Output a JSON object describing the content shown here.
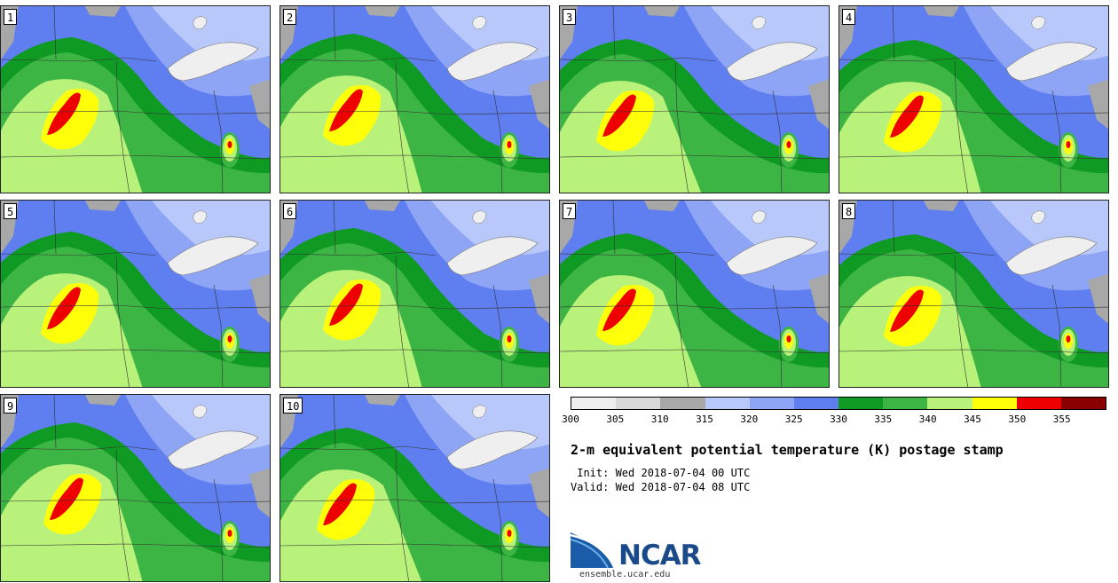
{
  "stamps": [
    {
      "label": "1",
      "variant": 0
    },
    {
      "label": "2",
      "variant": 1
    },
    {
      "label": "3",
      "variant": 2
    },
    {
      "label": "4",
      "variant": 3
    },
    {
      "label": "5",
      "variant": 0
    },
    {
      "label": "6",
      "variant": 1
    },
    {
      "label": "7",
      "variant": 2
    },
    {
      "label": "8",
      "variant": 3
    },
    {
      "label": "9",
      "variant": 1
    },
    {
      "label": "10",
      "variant": 2
    }
  ],
  "colorbar": {
    "colors": [
      "#efefef",
      "#d8d8d8",
      "#a8a8a8",
      "#b9c8fa",
      "#8ea5f5",
      "#5f7ef0",
      "#0f9a24",
      "#3db545",
      "#b8f27a",
      "#ffff0a",
      "#ee0000",
      "#8a0000"
    ],
    "ticks": [
      "300",
      "305",
      "310",
      "315",
      "320",
      "325",
      "330",
      "335",
      "340",
      "345",
      "350",
      "355"
    ]
  },
  "title": "2-m equivalent potential temperature (K) postage stamp",
  "init": " Init: Wed 2018-07-04 00 UTC",
  "valid": "Valid: Wed 2018-07-04 08 UTC",
  "logo": {
    "name": "NCAR",
    "url": "ensemble.ucar.edu"
  }
}
